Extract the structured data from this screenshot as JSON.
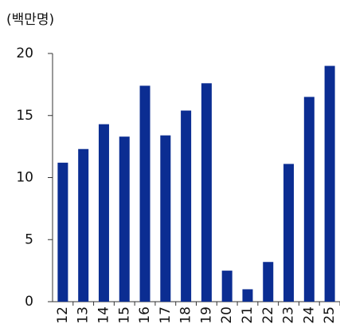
{
  "chart_data": {
    "type": "bar",
    "unit_label": "(백만명)",
    "categories": [
      "12",
      "13",
      "14",
      "15",
      "16",
      "17",
      "18",
      "19",
      "20",
      "21",
      "22",
      "23",
      "24",
      "25"
    ],
    "values": [
      11.2,
      12.3,
      14.3,
      13.3,
      17.4,
      13.4,
      15.4,
      17.6,
      2.5,
      1.0,
      3.2,
      11.1,
      16.5,
      19.0
    ],
    "color": "#0b2d92",
    "ylim": [
      0,
      20
    ],
    "yticks": [
      0,
      5,
      10,
      15,
      20
    ],
    "grid": false
  }
}
